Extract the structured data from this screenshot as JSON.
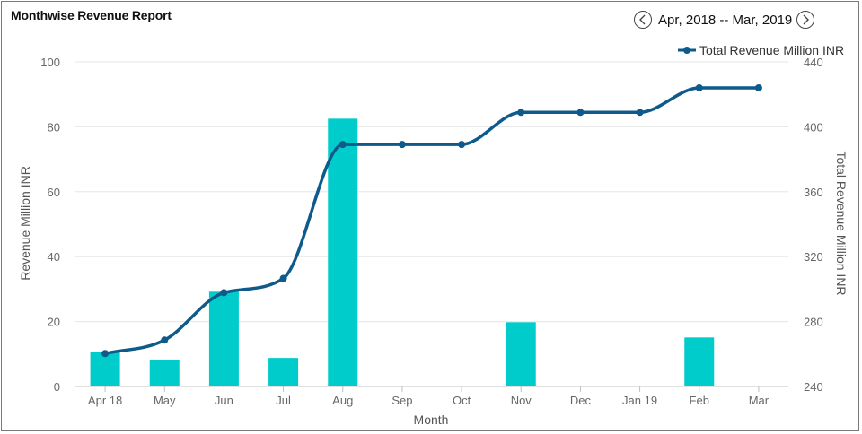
{
  "report": {
    "title": "Monthwise Revenue Report",
    "date_range": "Apr, 2018 -- Mar, 2019",
    "prev_icon": "chevron-left-icon",
    "next_icon": "chevron-right-icon"
  },
  "chart_data": {
    "type": "bar",
    "xlabel": "Month",
    "ylabel": "Revenue Million INR",
    "y2label": "Total Revenue Million INR",
    "categories": [
      "Apr 18",
      "May",
      "Jun",
      "Jul",
      "Aug",
      "Sep",
      "Oct",
      "Nov",
      "Dec",
      "Jan 19",
      "Feb",
      "Mar"
    ],
    "ylim": [
      0,
      100
    ],
    "yticks": [
      0,
      20,
      40,
      60,
      80,
      100
    ],
    "y2lim": [
      240,
      440
    ],
    "y2ticks": [
      240,
      280,
      320,
      360,
      400,
      440
    ],
    "bar_color": "#00cccc",
    "line_color": "#0e5a8a",
    "series": [
      {
        "type": "bar",
        "axis": "left",
        "values": [
          10.7,
          8.3,
          29.2,
          8.8,
          82.5,
          0,
          0,
          19.8,
          0,
          0,
          15.1,
          0
        ]
      },
      {
        "type": "line",
        "axis": "right",
        "name": "Total Revenue Million INR",
        "values": [
          260.3,
          268.6,
          297.8,
          306.6,
          389.1,
          389.1,
          389.1,
          408.9,
          408.9,
          408.9,
          424.0,
          424.0
        ]
      }
    ],
    "grid": true,
    "legend": "top-right"
  }
}
